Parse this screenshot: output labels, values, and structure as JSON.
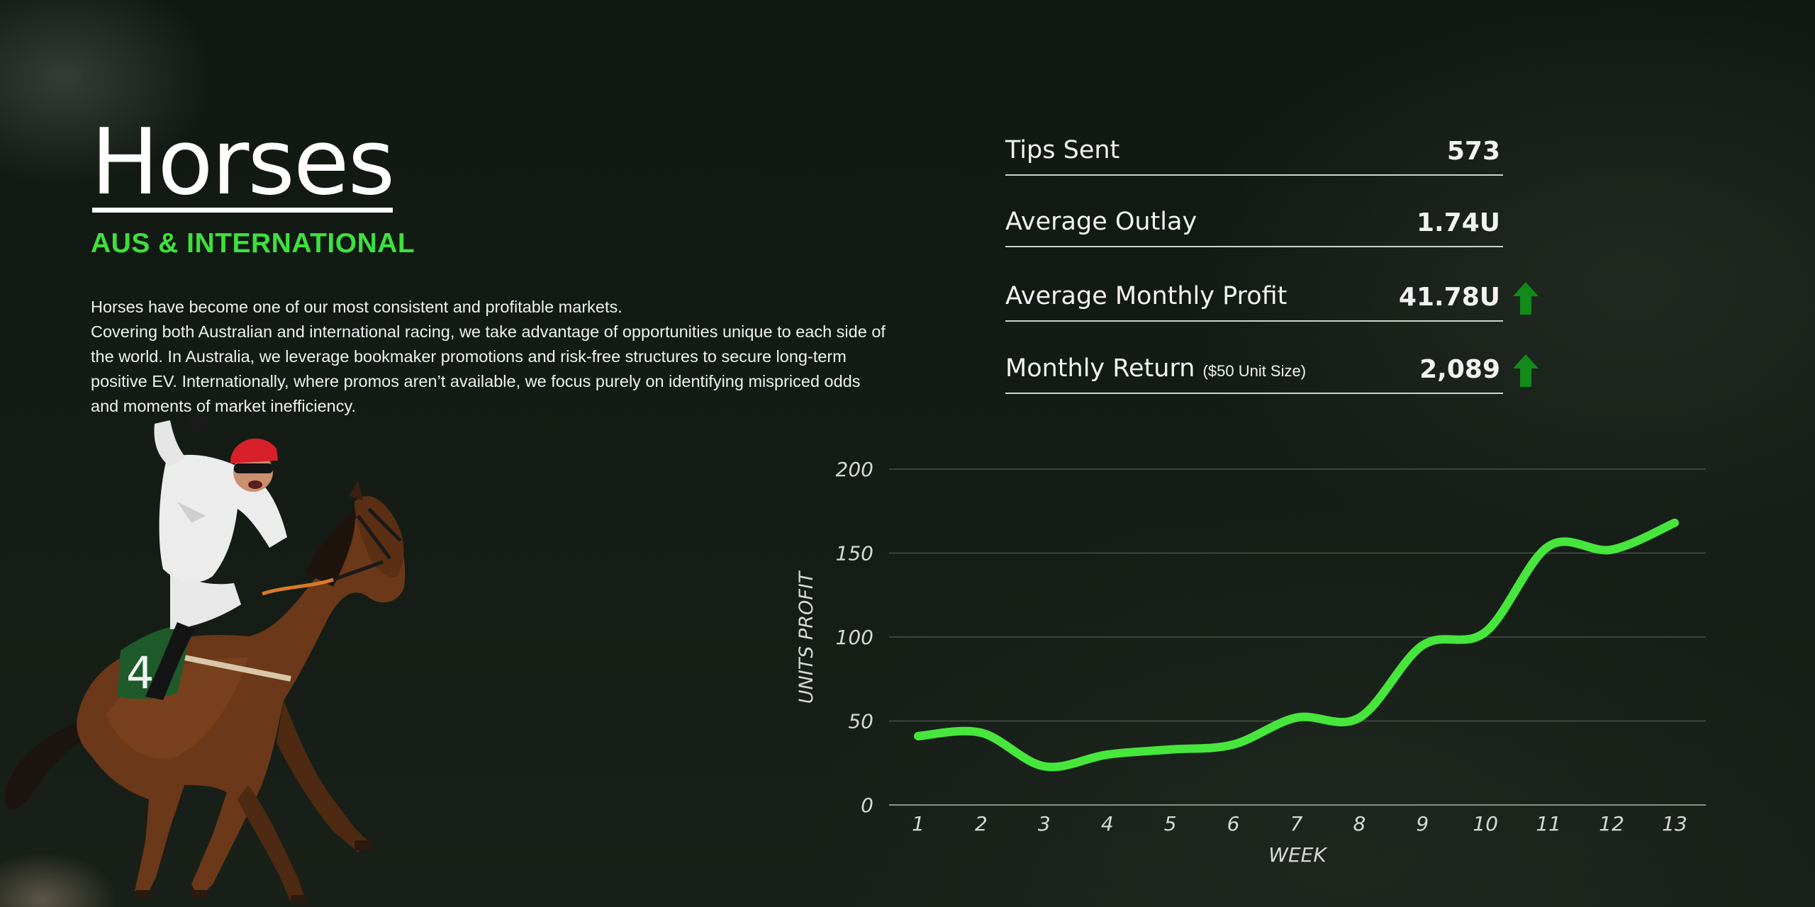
{
  "header": {
    "title": "Horses",
    "subtitle": "AUS & INTERNATIONAL"
  },
  "description": {
    "line1": "Horses have become one of our most consistent and profitable markets.",
    "line2": "Covering both Australian and international racing, we take advantage of opportunities unique to each side of the world. In Australia, we leverage bookmaker promotions and risk-free structures to secure long-term positive EV. Internationally, where promos aren’t available, we focus purely on identifying mispriced odds and moments of market inefficiency."
  },
  "stats": [
    {
      "label": "Tips Sent",
      "sublabel": "",
      "value": "573",
      "trend": ""
    },
    {
      "label": "Average Outlay",
      "sublabel": "",
      "value": "1.74U",
      "trend": ""
    },
    {
      "label": "Average Monthly Profit",
      "sublabel": "",
      "value": "41.78U",
      "trend": "up"
    },
    {
      "label": "Monthly Return",
      "sublabel": "($50 Unit Size)",
      "value": "2,089",
      "trend": "up"
    }
  ],
  "colors": {
    "accent": "#3ee03e",
    "line": "#47e63c",
    "trend_up": "#118a1a",
    "background": "#131a14"
  },
  "icons": {
    "trend_up": "up-arrow-icon",
    "illustration": "jockey-racehorse-illustration"
  },
  "chart_data": {
    "type": "line",
    "title": "",
    "xlabel": "WEEK",
    "ylabel": "UNITS PROFIT",
    "x": [
      1,
      2,
      3,
      4,
      5,
      6,
      7,
      8,
      9,
      10,
      11,
      12,
      13
    ],
    "series": [
      {
        "values": [
          41,
          43,
          23,
          30,
          33,
          36,
          52,
          52,
          95,
          103,
          154,
          152,
          168
        ]
      }
    ],
    "ylim": [
      0,
      200
    ],
    "yticks": [
      0,
      50,
      100,
      150,
      200
    ],
    "grid": true,
    "legend": false
  }
}
